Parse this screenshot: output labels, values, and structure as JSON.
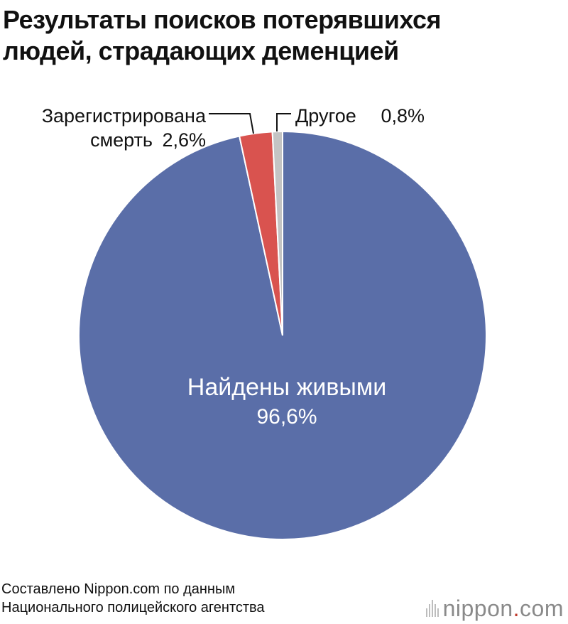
{
  "title_line1": "Результаты поисков потерявшихся",
  "title_line2": "людей, страдающих деменцией",
  "chart_data": {
    "type": "pie",
    "start_angle_deg": 0,
    "direction": "clockwise",
    "slices": [
      {
        "label": "Найдены живыми",
        "value": 96.6,
        "value_label": "96,6%",
        "color": "#5a6ea8"
      },
      {
        "label": "Зарегистрирована смерть",
        "label_line1": "Зарегистрирована",
        "label_line2": "смерть",
        "value": 2.6,
        "value_label": "2,6%",
        "color": "#d9534f"
      },
      {
        "label": "Другое",
        "value": 0.8,
        "value_label": "0,8%",
        "color": "#c4c4c4"
      }
    ]
  },
  "source_line1": "Составлено Nippon.com по данным",
  "source_line2": "Национального полицейского агентства",
  "logo": {
    "name": "nippon",
    "dot": ".",
    "suffix": "com",
    "icon": "signal-bars-icon"
  }
}
